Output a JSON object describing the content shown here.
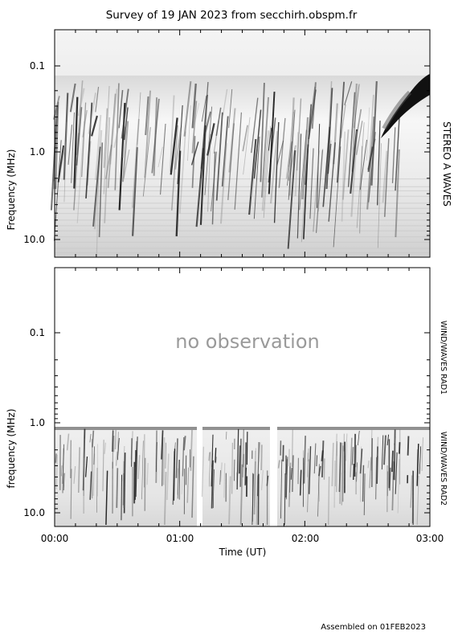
{
  "title": "Survey of 19 JAN 2023 from secchirh.obspm.fr",
  "footer": "Assembled on 01FEB2023",
  "no_observation_label": "no observation",
  "colors": {
    "ink": "#000000",
    "frame": "#000000",
    "missing": "#9a9a9a",
    "band": "#f2f2f2"
  },
  "chart_data": [
    {
      "type": "heatmap",
      "name": "STEREO A WAVES",
      "ylabel": "Frequency (MHz)",
      "yscale": "log",
      "yaxis_inverted": true,
      "ylim": [
        0.04,
        20.0
      ],
      "yticks": [
        0.1,
        1.0,
        10.0
      ],
      "ytick_labels": [
        "0.1",
        "1.0",
        "10.0"
      ],
      "right_label": "STEREO A WAVES",
      "data_start_mhz": 0.125,
      "features": [
        {
          "kind": "type-III bursts",
          "count_estimate": 60,
          "freq_range_mhz": [
            0.2,
            15.0
          ]
        },
        {
          "kind": "intense slow-drift emission",
          "time_range_utc": [
            "02:35",
            "03:00"
          ],
          "freq_range_mhz": [
            0.125,
            0.8
          ]
        }
      ]
    },
    {
      "type": "heatmap",
      "name": "WIND/WAVES RAD1 + RAD2",
      "ylabel": "frequency (MHz)",
      "yscale": "log",
      "yaxis_inverted": true,
      "ylim": [
        0.02,
        14.0
      ],
      "yticks": [
        0.1,
        1.0,
        10.0
      ],
      "ytick_labels": [
        "0.1",
        "1.0",
        "10.0"
      ],
      "right_labels": [
        "WIND/WAVES RAD1",
        "WIND/WAVES RAD2"
      ],
      "rad1_status": "no observation",
      "rad2_freq_range_mhz": [
        1.0,
        14.0
      ],
      "data_gaps_utc": [
        [
          "01:07",
          "01:10"
        ],
        [
          "01:45",
          "01:49"
        ]
      ]
    }
  ],
  "xaxis": {
    "label": "Time (UT)",
    "xlim": [
      "00:00",
      "03:00"
    ],
    "ticks": [
      "00:00",
      "01:00",
      "02:00",
      "03:00"
    ]
  }
}
